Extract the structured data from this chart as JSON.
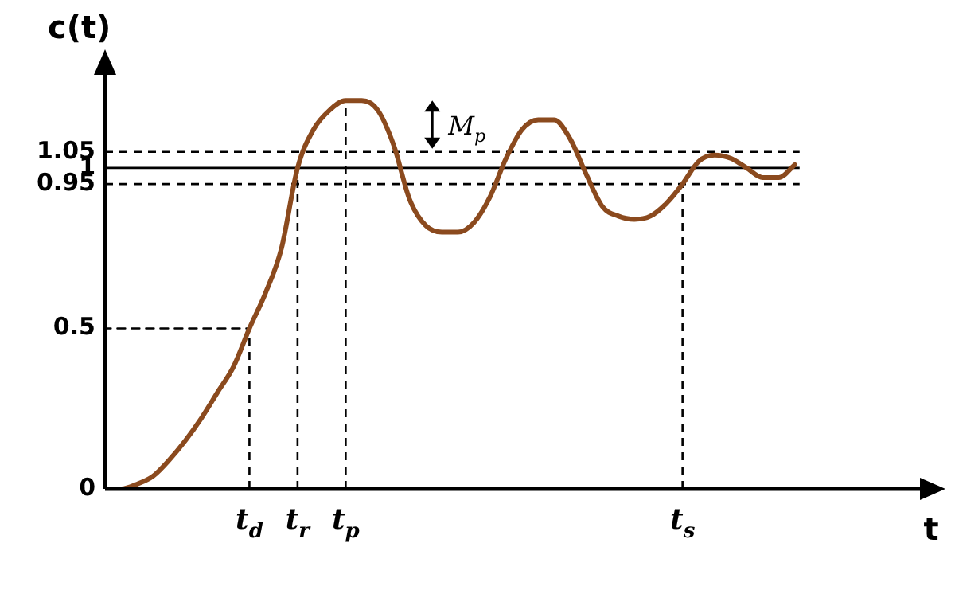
{
  "chart_data": {
    "type": "line",
    "xlabel": "t",
    "ylabel": "c(t)",
    "categories": [
      null,
      null,
      null,
      null,
      null,
      null,
      null,
      null,
      null,
      "t$_{d}$",
      null,
      null,
      "t$_{r}$",
      null,
      null,
      "t$_{p}$",
      null,
      null,
      null,
      null,
      null,
      null,
      null,
      null,
      null,
      null,
      null,
      null,
      null,
      null,
      null,
      null,
      null,
      null,
      null,
      null,
      "t$_{s}$",
      null,
      null,
      null,
      null,
      null,
      null,
      null,
      null,
      null,
      null,
      null,
      null,
      null,
      null,
      null
    ],
    "ylim": [
      0,
      1.3
    ],
    "yticks": [
      0,
      0.5,
      0.95,
      1,
      1.05
    ],
    "grid": false,
    "legend": false,
    "marker": "none",
    "series": [
      {
        "color": "#8b4a1e",
        "line_style": "solid",
        "values": [
          0,
          0,
          0.015,
          0.04,
          0.09,
          0.15,
          0.22,
          0.3,
          0.38,
          0.5,
          0.61,
          0.75,
          1.0,
          1.12,
          1.18,
          1.21,
          1.21,
          1.18,
          1.07,
          0.9,
          0.82,
          0.8,
          0.8,
          0.83,
          0.91,
          1.03,
          1.12,
          1.15,
          1.15,
          1.09,
          0.98,
          0.88,
          0.85,
          0.84,
          0.85,
          0.89,
          0.95,
          1.02,
          1.04,
          1.03,
          1.0,
          0.97,
          0.97,
          1.01,
          null,
          null,
          null,
          null,
          null,
          null,
          null,
          null
        ]
      },
      {
        "color": "#000000",
        "line_style": "dashed",
        "values": [
          0.5,
          0.5,
          0.5,
          0.5,
          0.5,
          0.5,
          0.5,
          0.5,
          0.5,
          0.5,
          null,
          null,
          null,
          null,
          null,
          null,
          null,
          null,
          null,
          null,
          null,
          null,
          null,
          null,
          null,
          null,
          null,
          null,
          null,
          null,
          null,
          null,
          null,
          null,
          null,
          null,
          null,
          null,
          null,
          null,
          null,
          null,
          null,
          null,
          null,
          null,
          null,
          null,
          null,
          null,
          null,
          null
        ]
      }
    ],
    "ref_lines": [
      {
        "axis": "y",
        "value": 1.05,
        "color": "#000000",
        "line_style": "dashed"
      },
      {
        "axis": "y",
        "value": 1,
        "color": "#000000",
        "line_style": "solid"
      },
      {
        "axis": "y",
        "value": 0.95,
        "color": "#000000",
        "line_style": "dashed"
      },
      {
        "axis": "x",
        "value": "t$_{d}$",
        "color": "#000000",
        "line_style": "dashed"
      },
      {
        "axis": "x",
        "value": "t$_{r}$",
        "color": "#000000",
        "line_style": "dashed"
      },
      {
        "axis": "x",
        "value": "t$_{p}$",
        "color": "#000000",
        "line_style": "dashed"
      },
      {
        "axis": "x",
        "value": "t$_{s}$",
        "color": "#000000",
        "line_style": "dashed"
      }
    ],
    "annotations": [
      "M$_{p}$"
    ]
  }
}
